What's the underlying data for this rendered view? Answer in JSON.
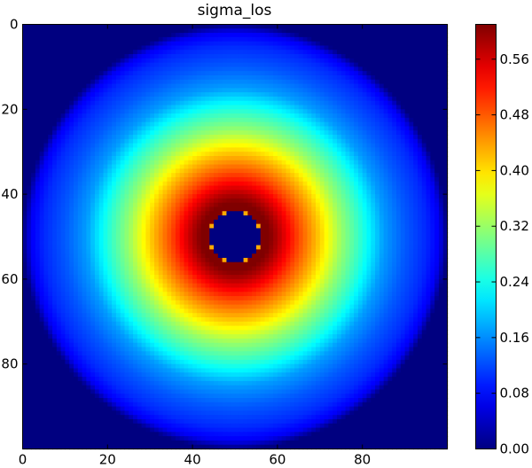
{
  "chart_data": {
    "type": "heatmap",
    "title": "sigma_los",
    "xlabel": "",
    "ylabel": "",
    "grid": false,
    "colormap": "jet",
    "shape": [
      100,
      100
    ],
    "xlim": [
      0,
      100
    ],
    "ylim": [
      100,
      0
    ],
    "x_ticks": [
      {
        "value": 0,
        "label": "0"
      },
      {
        "value": 20,
        "label": "20"
      },
      {
        "value": 40,
        "label": "40"
      },
      {
        "value": 60,
        "label": "60"
      },
      {
        "value": 80,
        "label": "80"
      }
    ],
    "y_ticks": [
      {
        "value": 0,
        "label": "0"
      },
      {
        "value": 20,
        "label": "20"
      },
      {
        "value": 40,
        "label": "40"
      },
      {
        "value": 60,
        "label": "60"
      },
      {
        "value": 80,
        "label": "80"
      }
    ],
    "center": [
      50,
      50
    ],
    "radial_profile": {
      "radius": [
        0,
        5.9,
        6.1,
        8,
        10,
        15,
        20,
        25,
        30,
        35,
        40,
        45,
        48,
        50,
        71
      ],
      "value": [
        0.0,
        0.0,
        0.61,
        0.61,
        0.58,
        0.49,
        0.41,
        0.32,
        0.25,
        0.17,
        0.13,
        0.1,
        0.07,
        0.0,
        0.0
      ]
    },
    "colorbar": {
      "min": 0.0,
      "max": 0.61,
      "ticks": [
        {
          "value": 0.0,
          "label": "0.00"
        },
        {
          "value": 0.08,
          "label": "0.08"
        },
        {
          "value": 0.16,
          "label": "0.16"
        },
        {
          "value": 0.24,
          "label": "0.24"
        },
        {
          "value": 0.32,
          "label": "0.32"
        },
        {
          "value": 0.4,
          "label": "0.40"
        },
        {
          "value": 0.48,
          "label": "0.48"
        },
        {
          "value": 0.56,
          "label": "0.56"
        }
      ]
    }
  }
}
